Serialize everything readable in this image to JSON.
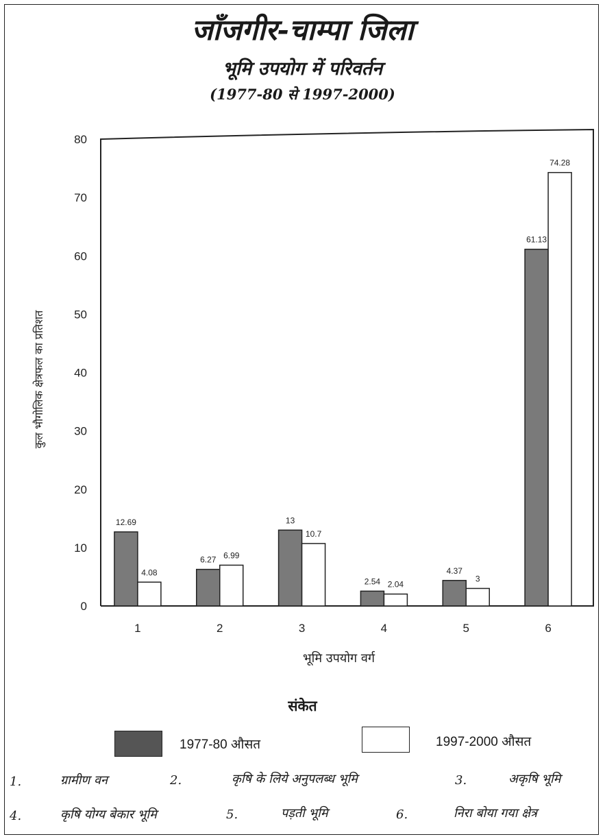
{
  "title": "जाँजगीर-चाम्पा जिला",
  "subtitle": "भूमि उपयोग में परिवर्तन",
  "period": "(1977-80 से 1997-2000)",
  "chart_data": {
    "type": "bar",
    "categories": [
      "1",
      "2",
      "3",
      "4",
      "5",
      "6"
    ],
    "series": [
      {
        "name": "1977-80 औसत",
        "values": [
          12.69,
          6.27,
          13,
          2.54,
          4.37,
          61.13
        ],
        "labels": [
          "12.69",
          "6.27",
          "13",
          "2.54",
          "4.37",
          "61.13"
        ],
        "color": "#7a7a7a"
      },
      {
        "name": "1997-2000 औसत",
        "values": [
          4.08,
          6.99,
          10.7,
          2.04,
          3,
          74.28
        ],
        "labels": [
          "4.08",
          "6.99",
          "10.7",
          "2.04",
          "3",
          "74.28"
        ],
        "color": "#ffffff"
      }
    ],
    "xlabel": "भूमि उपयोग वर्ग",
    "ylabel": "कुल भौगोलिक क्षेत्रफल का प्रतिशत",
    "ylim": [
      0,
      80
    ],
    "yticks": [
      "0",
      "10",
      "20",
      "30",
      "40",
      "50",
      "60",
      "70",
      "80"
    ],
    "grid": false
  },
  "legend": {
    "title": "संकेत",
    "items": [
      "1977-80 औसत",
      "1997-2000 औसत"
    ]
  },
  "category_names": [
    {
      "num": "1.",
      "name": "ग्रामीण वन"
    },
    {
      "num": "2.",
      "name": "कृषि के लिये अनुपलब्ध भूमि"
    },
    {
      "num": "3.",
      "name": "अकृषि भूमि"
    },
    {
      "num": "4.",
      "name": "कृषि योग्य बेकार भूमि"
    },
    {
      "num": "5.",
      "name": "पड़ती भूमि"
    },
    {
      "num": "6.",
      "name": "निरा बोया गया क्षेत्र"
    }
  ]
}
